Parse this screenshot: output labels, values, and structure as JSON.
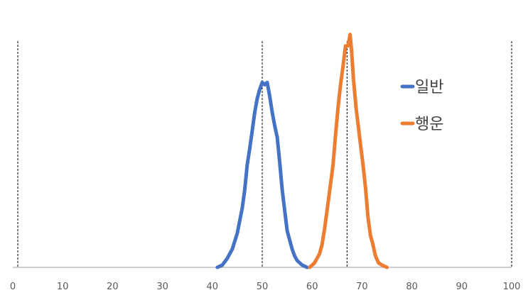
{
  "chart_data": {
    "type": "line",
    "title": "",
    "xlabel": "",
    "ylabel": "",
    "xlim": [
      0,
      100
    ],
    "ylim": [
      0,
      1.0
    ],
    "x_ticks": [
      0,
      10,
      20,
      30,
      40,
      50,
      60,
      70,
      80,
      90,
      100
    ],
    "grid": false,
    "legend_position": "right",
    "axis_color": "#bfbfbf",
    "reference_lines": [
      1,
      50,
      67,
      100
    ],
    "series": [
      {
        "name": "일반",
        "color": "#4472c4",
        "points": [
          [
            41,
            0
          ],
          [
            42,
            0.01
          ],
          [
            43,
            0.04
          ],
          [
            44,
            0.08
          ],
          [
            45,
            0.15
          ],
          [
            46,
            0.26
          ],
          [
            46.5,
            0.34
          ],
          [
            47,
            0.45
          ],
          [
            47.5,
            0.52
          ],
          [
            48,
            0.6
          ],
          [
            48.5,
            0.68
          ],
          [
            49,
            0.74
          ],
          [
            49.5,
            0.78
          ],
          [
            50,
            0.81
          ],
          [
            50.5,
            0.8
          ],
          [
            51,
            0.81
          ],
          [
            51.5,
            0.75
          ],
          [
            52,
            0.68
          ],
          [
            52.5,
            0.62
          ],
          [
            53,
            0.57
          ],
          [
            53.5,
            0.46
          ],
          [
            54,
            0.34
          ],
          [
            54.5,
            0.25
          ],
          [
            55,
            0.16
          ],
          [
            55.5,
            0.12
          ],
          [
            56,
            0.08
          ],
          [
            56.5,
            0.05
          ],
          [
            57,
            0.03
          ],
          [
            58,
            0.01
          ],
          [
            59,
            0
          ]
        ]
      },
      {
        "name": "행운",
        "color": "#ed7d31",
        "points": [
          [
            59.5,
            0
          ],
          [
            60.5,
            0.02
          ],
          [
            61.5,
            0.06
          ],
          [
            62,
            0.1
          ],
          [
            62.5,
            0.17
          ],
          [
            63.3,
            0.3
          ],
          [
            64.2,
            0.45
          ],
          [
            64.7,
            0.58
          ],
          [
            65.2,
            0.7
          ],
          [
            65.7,
            0.8
          ],
          [
            66.2,
            0.88
          ],
          [
            66.7,
            0.97
          ],
          [
            67.2,
            0.97
          ],
          [
            67.6,
            1.02
          ],
          [
            67.9,
            0.95
          ],
          [
            68.3,
            0.82
          ],
          [
            68.8,
            0.7
          ],
          [
            69.3,
            0.61
          ],
          [
            69.8,
            0.52
          ],
          [
            70.2,
            0.45
          ],
          [
            70.7,
            0.35
          ],
          [
            71.2,
            0.22
          ],
          [
            71.7,
            0.14
          ],
          [
            72.2,
            0.1
          ],
          [
            72.7,
            0.05
          ],
          [
            73.3,
            0.02
          ],
          [
            74,
            0.01
          ],
          [
            75,
            0
          ]
        ]
      }
    ]
  }
}
